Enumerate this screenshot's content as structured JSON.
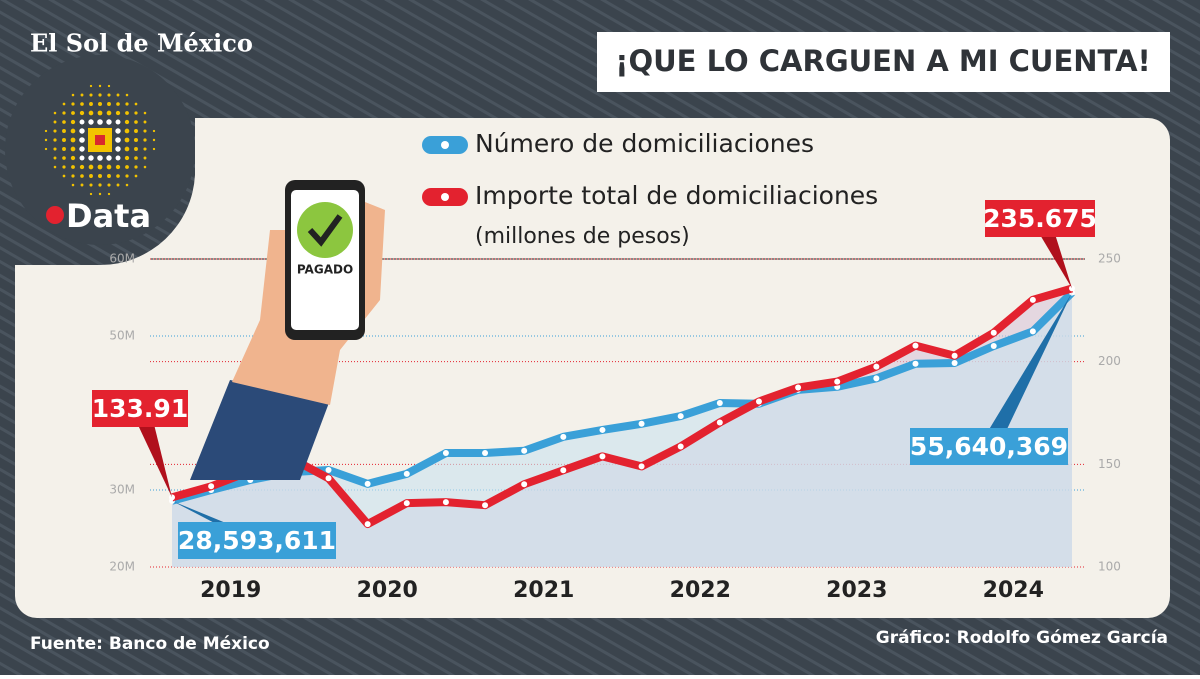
{
  "brand": "El Sol de México",
  "section": "Data",
  "source": "Fuente: Banco de México",
  "credit": "Gráfico: Rodolfo Gómez García",
  "illustration_text": "PAGADO",
  "chart_data": {
    "type": "line",
    "title": "¡QUE LO CARGUEN A MI CUENTA!",
    "categories": [
      null,
      "2019",
      null,
      null,
      null,
      "2020",
      null,
      null,
      null,
      "2021",
      null,
      null,
      null,
      "2022",
      null,
      null,
      null,
      "2023",
      null,
      null,
      null,
      "2024",
      null,
      null
    ],
    "ylim": [
      20000000,
      60000000
    ],
    "yticks": [
      {
        "value": 20000000,
        "label": "20M"
      },
      {
        "value": 30000000,
        "label": "30M"
      },
      {
        "value": 50000000,
        "label": "50M"
      },
      {
        "value": 60000000,
        "label": "60M"
      }
    ],
    "y2lim": [
      100,
      250
    ],
    "y2ticks": [
      100,
      150,
      200,
      250
    ],
    "grid": true,
    "series": [
      {
        "name": "Número de domiciliaciones",
        "color": "#3aa0d8",
        "values": [
          28593611,
          30000000,
          31300000,
          32300000,
          32600000,
          30800000,
          32100000,
          34800000,
          34800000,
          35100000,
          36900000,
          37800000,
          38600000,
          39600000,
          41300000,
          41200000,
          43000000,
          43400000,
          44500000,
          46400000,
          46500000,
          48700000,
          50600000,
          55640369
        ],
        "value_labels": [
          "28,593,611",
          null,
          null,
          null,
          null,
          null,
          null,
          null,
          null,
          null,
          null,
          null,
          null,
          null,
          null,
          null,
          null,
          null,
          null,
          null,
          null,
          null,
          null,
          "55,640,369"
        ]
      },
      {
        "name": "Importe total de domiciliaciones",
        "subtitle": "(millones de pesos)",
        "color": "#e3222f",
        "axis": "y2",
        "values": [
          133.91,
          139.3,
          146.6,
          153.4,
          143.2,
          120.9,
          131.1,
          131.6,
          130.1,
          140.3,
          147.1,
          153.9,
          149.0,
          158.7,
          170.4,
          180.6,
          187.4,
          190.3,
          197.6,
          207.8,
          202.9,
          214.1,
          230.1,
          235.675
        ]
      }
    ]
  }
}
